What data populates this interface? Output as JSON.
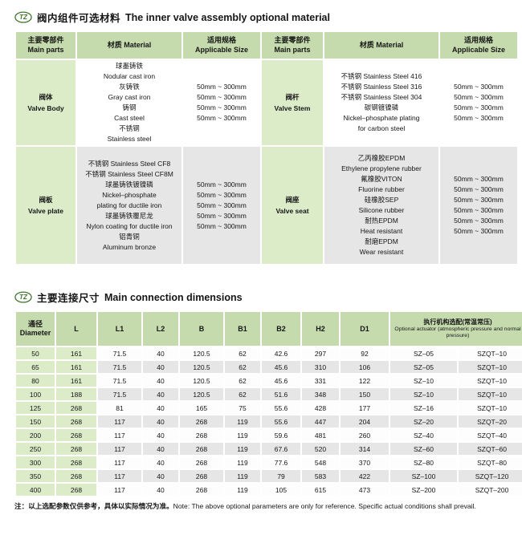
{
  "logo_text": "TZ",
  "section1": {
    "title_zh": "阀内组件可选材料",
    "title_en": "The inner valve assembly optional material",
    "header": {
      "main_parts_zh": "主要零部件",
      "main_parts_en": "Main parts",
      "material": "材质 Material",
      "size_zh": "适用规格",
      "size_en": "Applicable Size"
    },
    "rows": [
      {
        "left": {
          "part_zh": "阀体",
          "part_en": "Valve Body",
          "materials": [
            "球墨铸铁",
            "Nodular cast iron",
            "灰铸铁",
            "Gray cast iron",
            "铸钢",
            "Cast steel",
            "不锈钢",
            "Stainless steel"
          ],
          "sizes": [
            "50mm ~ 300mm",
            "50mm ~ 300mm",
            "50mm ~ 300mm",
            "50mm ~ 300mm"
          ]
        },
        "right": {
          "part_zh": "阀杆",
          "part_en": "Valve Stem",
          "materials": [
            "不锈钢 Stainless Steel 416",
            "不锈钢 Stainless Steel 316",
            "不锈钢 Stainless Steel 304",
            "碳钢镀镍磷",
            "Nickel–phosphate plating",
            "for carbon steel"
          ],
          "sizes": [
            "50mm ~ 300mm",
            "50mm ~ 300mm",
            "50mm ~ 300mm",
            "50mm ~ 300mm"
          ]
        }
      },
      {
        "left": {
          "part_zh": "阀板",
          "part_en": "Valve plate",
          "materials": [
            "不锈钢 Stainless Steel CF8",
            "不锈钢 Stainless Steel CF8M",
            "球墨铸铁镀镍磷",
            "Nickel–phosphate",
            "plating for ductile iron",
            "球墨铸铁覆尼龙",
            "Nylon coating for ductile iron",
            "铝青铜",
            "Aluminum bronze"
          ],
          "sizes": [
            "50mm ~ 300mm",
            "50mm ~ 300mm",
            "50mm ~ 300mm",
            "50mm ~ 300mm",
            "50mm ~ 300mm"
          ]
        },
        "right": {
          "part_zh": "阀座",
          "part_en": "Valve seat",
          "materials": [
            "乙丙橡胶EPDM",
            "Ethylene propylene rubber",
            "氟橡胶VITON",
            "Fluorine rubber",
            "硅橡胶SEP",
            "Silicone rubber",
            "耐热EPDM",
            "Heat resistant",
            "耐磨EPDM",
            "Wear resistant"
          ],
          "sizes": [
            "50mm ~ 300mm",
            "50mm ~ 300mm",
            "50mm ~ 300mm",
            "50mm ~ 300mm",
            "50mm ~ 300mm",
            "50mm ~ 300mm"
          ]
        }
      }
    ]
  },
  "section2": {
    "title_zh": "主要连接尺寸",
    "title_en": "Main connection dimensions",
    "header": {
      "diameter_zh": "通径",
      "diameter_en": "Diameter",
      "cols": [
        "L",
        "L1",
        "L2",
        "B",
        "B1",
        "B2",
        "H2",
        "D1"
      ],
      "actuator_zh": "执行机构选配(常温常压)",
      "actuator_en": "Optional actuator (atmospheric pressure and normal pressure)"
    },
    "rows": [
      [
        "50",
        "161",
        "71.5",
        "40",
        "120.5",
        "62",
        "42.6",
        "297",
        "92",
        "SZ–05",
        "SZQT–10"
      ],
      [
        "65",
        "161",
        "71.5",
        "40",
        "120.5",
        "62",
        "45.6",
        "310",
        "106",
        "SZ–05",
        "SZQT–10"
      ],
      [
        "80",
        "161",
        "71.5",
        "40",
        "120.5",
        "62",
        "45.6",
        "331",
        "122",
        "SZ–10",
        "SZQT–10"
      ],
      [
        "100",
        "188",
        "71.5",
        "40",
        "120.5",
        "62",
        "51.6",
        "348",
        "150",
        "SZ–10",
        "SZQT–10"
      ],
      [
        "125",
        "268",
        "81",
        "40",
        "165",
        "75",
        "55.6",
        "428",
        "177",
        "SZ–16",
        "SZQT–10"
      ],
      [
        "150",
        "268",
        "117",
        "40",
        "268",
        "119",
        "55.6",
        "447",
        "204",
        "SZ–20",
        "SZQT–20"
      ],
      [
        "200",
        "268",
        "117",
        "40",
        "268",
        "119",
        "59.6",
        "481",
        "260",
        "SZ–40",
        "SZQT–40"
      ],
      [
        "250",
        "268",
        "117",
        "40",
        "268",
        "119",
        "67.6",
        "520",
        "314",
        "SZ–60",
        "SZQT–60"
      ],
      [
        "300",
        "268",
        "117",
        "40",
        "268",
        "119",
        "77.6",
        "548",
        "370",
        "SZ–80",
        "SZQT–80"
      ],
      [
        "350",
        "268",
        "117",
        "40",
        "268",
        "119",
        "79",
        "583",
        "422",
        "SZ–100",
        "SZQT–120"
      ],
      [
        "400",
        "268",
        "117",
        "40",
        "268",
        "119",
        "105",
        "615",
        "473",
        "SZ–200",
        "SZQT–200"
      ]
    ]
  },
  "note": {
    "zh": "注：以上选配参数仅供参考，具体以实际情况为准。",
    "en": "Note: The above optional parameters are only for reference. Specific actual conditions shall prevail."
  }
}
